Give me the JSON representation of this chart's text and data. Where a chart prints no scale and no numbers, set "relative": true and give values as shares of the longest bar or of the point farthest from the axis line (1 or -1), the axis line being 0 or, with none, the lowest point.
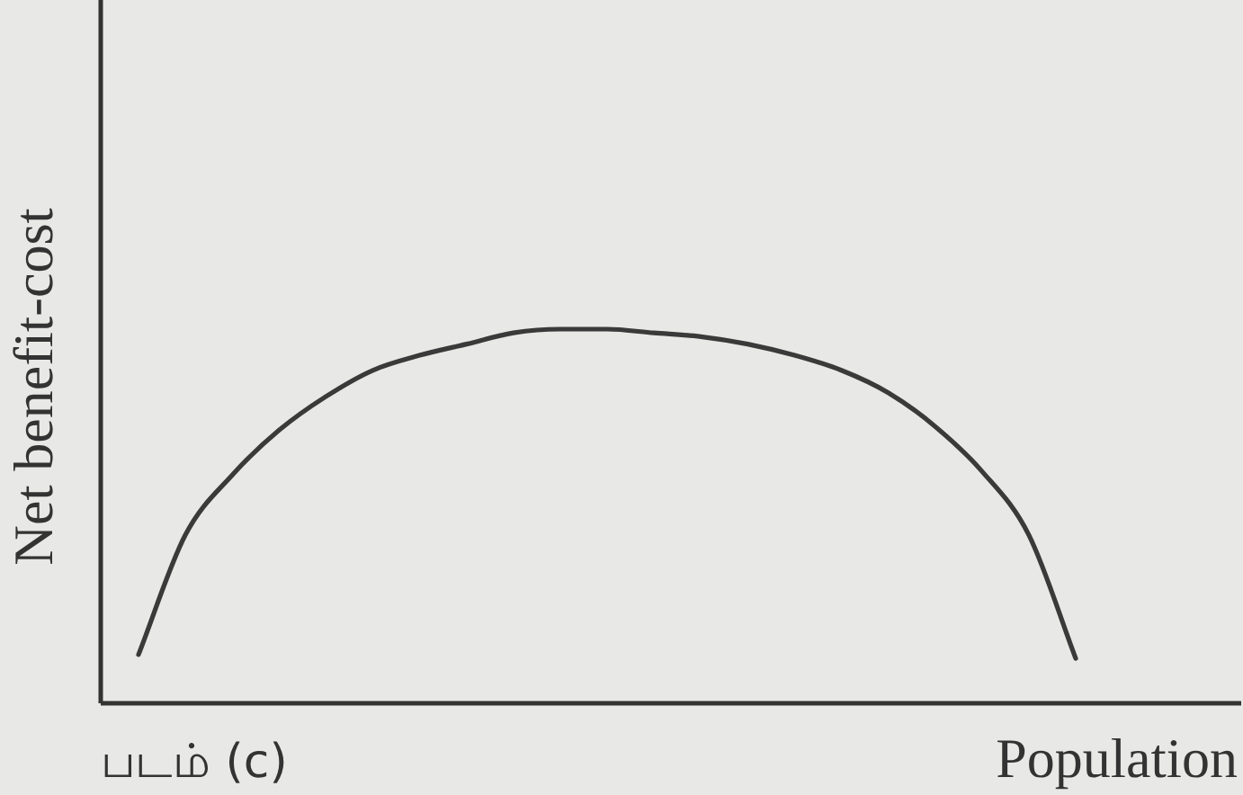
{
  "chart_data": {
    "type": "line",
    "relative": true,
    "ylabel": "Net benefit-cost",
    "xlabel": "Population",
    "annotations": [
      "படம் (c)"
    ],
    "categories": [
      null,
      null,
      null,
      null,
      null,
      null,
      null,
      null,
      null,
      null,
      null,
      null,
      null,
      null,
      null,
      null,
      null,
      null,
      null,
      null,
      null
    ],
    "series": [
      {
        "color": "#3a3a3a",
        "values": [
          0.13,
          0.45,
          0.61,
          0.73,
          0.82,
          0.89,
          0.93,
          0.96,
          0.99,
          1.0,
          1.0,
          0.99,
          0.98,
          0.96,
          0.93,
          0.89,
          0.83,
          0.74,
          0.62,
          0.45,
          0.12
        ]
      }
    ],
    "line_style": "solid"
  }
}
